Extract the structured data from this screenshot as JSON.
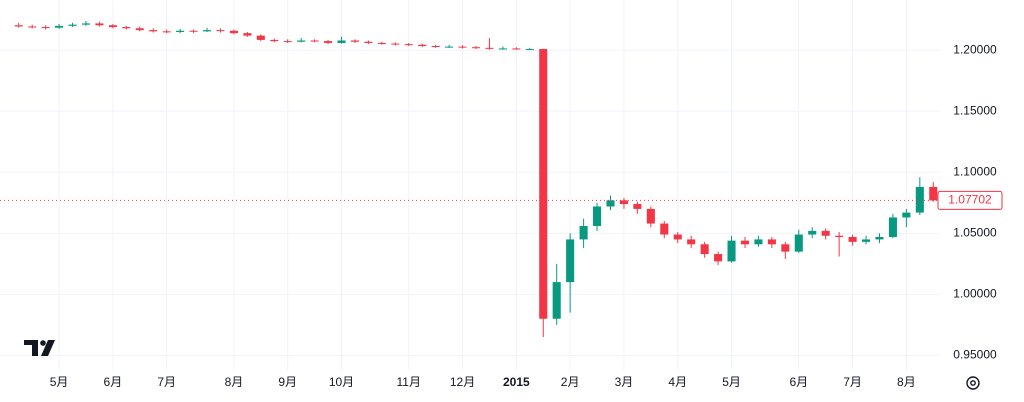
{
  "chart_data": {
    "type": "candlestick",
    "categories": [
      null,
      null,
      null,
      "5月",
      null,
      null,
      null,
      "6月",
      null,
      null,
      null,
      "7月",
      null,
      null,
      null,
      null,
      "8月",
      null,
      null,
      null,
      "9月",
      null,
      null,
      null,
      "10月",
      null,
      null,
      null,
      null,
      "11月",
      null,
      null,
      null,
      "12月",
      null,
      null,
      null,
      "2015",
      null,
      null,
      null,
      "2月",
      null,
      null,
      null,
      "3月",
      null,
      null,
      null,
      "4月",
      null,
      null,
      null,
      "5月",
      null,
      null,
      null,
      null,
      "6月",
      null,
      null,
      null,
      "7月",
      null,
      null,
      null,
      "8月",
      null,
      null
    ],
    "open": [
      1.2205,
      1.2195,
      1.219,
      1.2185,
      1.22,
      1.221,
      1.222,
      1.2205,
      1.219,
      1.218,
      1.2165,
      1.2155,
      1.215,
      1.216,
      1.2155,
      1.2165,
      1.216,
      1.214,
      1.212,
      1.2085,
      1.2075,
      1.207,
      1.208,
      1.2075,
      1.206,
      1.208,
      1.207,
      1.206,
      1.2055,
      1.205,
      1.2045,
      1.2035,
      1.203,
      1.203,
      1.2025,
      1.202,
      1.2015,
      1.2015,
      1.201,
      1.201,
      0.98,
      1.01,
      1.045,
      1.056,
      1.072,
      1.077,
      1.074,
      1.07,
      1.058,
      1.049,
      1.045,
      1.041,
      1.033,
      1.027,
      1.044,
      1.041,
      1.045,
      1.041,
      1.035,
      1.049,
      1.052,
      1.048,
      1.047,
      1.043,
      1.045,
      1.047,
      1.063,
      1.067,
      1.088
    ],
    "high": [
      1.2225,
      1.221,
      1.2205,
      1.2215,
      1.2225,
      1.224,
      1.2235,
      1.2215,
      1.22,
      1.2195,
      1.218,
      1.217,
      1.2175,
      1.217,
      1.2185,
      1.218,
      1.217,
      1.215,
      1.213,
      1.2095,
      1.209,
      1.21,
      1.209,
      1.2085,
      1.211,
      1.209,
      1.208,
      1.207,
      1.2065,
      1.206,
      1.2055,
      1.2045,
      1.2045,
      1.204,
      1.2035,
      1.21,
      1.203,
      1.2025,
      1.202,
      1.2012,
      1.025,
      1.05,
      1.062,
      1.075,
      1.081,
      1.079,
      1.076,
      1.072,
      1.06,
      1.051,
      1.048,
      1.043,
      1.035,
      1.048,
      1.047,
      1.048,
      1.047,
      1.043,
      1.053,
      1.055,
      1.054,
      1.051,
      1.049,
      1.048,
      1.05,
      1.066,
      1.07,
      1.096,
      1.092
    ],
    "low": [
      1.2185,
      1.218,
      1.217,
      1.2175,
      1.219,
      1.22,
      1.2195,
      1.218,
      1.217,
      1.2155,
      1.2145,
      1.214,
      1.214,
      1.214,
      1.215,
      1.2145,
      1.213,
      1.211,
      1.2075,
      1.2065,
      1.206,
      1.2065,
      1.2065,
      1.205,
      1.2055,
      1.206,
      1.205,
      1.2045,
      1.204,
      1.2035,
      1.2025,
      1.202,
      1.202,
      1.2015,
      1.201,
      1.2005,
      1.2005,
      1.2005,
      1.2005,
      0.965,
      0.975,
      0.985,
      1.038,
      1.052,
      1.069,
      1.07,
      1.066,
      1.055,
      1.046,
      1.042,
      1.038,
      1.03,
      1.024,
      1.026,
      1.038,
      1.039,
      1.038,
      1.029,
      1.034,
      1.046,
      1.045,
      1.031,
      1.04,
      1.041,
      1.042,
      1.046,
      1.055,
      1.065,
      1.076
    ],
    "close": [
      1.2195,
      1.219,
      1.2185,
      1.22,
      1.221,
      1.222,
      1.2205,
      1.219,
      1.218,
      1.2165,
      1.2155,
      1.215,
      1.216,
      1.2155,
      1.2165,
      1.216,
      1.214,
      1.212,
      1.2085,
      1.2075,
      1.207,
      1.208,
      1.2075,
      1.206,
      1.208,
      1.207,
      1.206,
      1.2055,
      1.205,
      1.2045,
      1.2035,
      1.203,
      1.203,
      1.2025,
      1.202,
      1.2015,
      1.2015,
      1.201,
      1.201,
      0.98,
      1.01,
      1.045,
      1.056,
      1.072,
      1.077,
      1.074,
      1.07,
      1.058,
      1.049,
      1.045,
      1.041,
      1.033,
      1.027,
      1.044,
      1.041,
      1.045,
      1.041,
      1.035,
      1.049,
      1.052,
      1.048,
      1.047,
      1.043,
      1.045,
      1.047,
      1.063,
      1.067,
      1.088,
      1.07702
    ],
    "up_color": "#089981",
    "down_color": "#f23645",
    "last_price": 1.07702,
    "ylim": [
      0.938,
      1.233
    ],
    "yticks": [
      {
        "value": 1.2,
        "label": "1.20000"
      },
      {
        "value": 1.15,
        "label": "1.15000"
      },
      {
        "value": 1.1,
        "label": "1.10000"
      },
      {
        "value": 1.05,
        "label": "1.05000"
      },
      {
        "value": 1.0,
        "label": "1.00000"
      },
      {
        "value": 0.95,
        "label": "0.95000"
      }
    ],
    "grid": true
  }
}
